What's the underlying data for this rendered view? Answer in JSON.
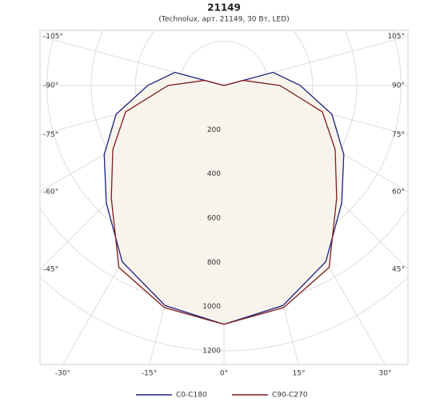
{
  "chart_data": {
    "type": "polar",
    "title": "21149",
    "subtitle": "(Technolux, арт. 21149, 30 Вт, LED)",
    "angles": [
      0,
      15,
      30,
      45,
      60,
      75,
      90,
      105,
      120
    ],
    "series": [
      {
        "name": "C0-C180",
        "color": "#1a237e",
        "values": [
          1080,
          1030,
          920,
          752,
          625,
          505,
          345,
          230,
          0
        ]
      },
      {
        "name": "C90-C270",
        "color": "#7f1d1d",
        "values": [
          1080,
          1040,
          950,
          720,
          580,
          460,
          253,
          90,
          0
        ]
      }
    ],
    "rlim": [
      0,
      1200
    ],
    "rticks": [
      200,
      400,
      600,
      800,
      1000,
      1200
    ],
    "angleticks": [
      {
        "value": -105,
        "label": "-105°"
      },
      {
        "value": -90,
        "label": "-90°"
      },
      {
        "value": -75,
        "label": "-75°"
      },
      {
        "value": -60,
        "label": "-60°"
      },
      {
        "value": -45,
        "label": "-45°"
      },
      {
        "value": -30,
        "label": "-30°"
      },
      {
        "value": -15,
        "label": "-15°"
      },
      {
        "value": 0,
        "label": "0°"
      },
      {
        "value": 15,
        "label": "15°"
      },
      {
        "value": 30,
        "label": "30°"
      },
      {
        "value": 45,
        "label": "45°"
      },
      {
        "value": 60,
        "label": "60°"
      },
      {
        "value": 75,
        "label": "75°"
      },
      {
        "value": 90,
        "label": "90°"
      },
      {
        "value": 105,
        "label": "105°"
      }
    ],
    "fill": "#f8f4ec",
    "grid": true
  }
}
